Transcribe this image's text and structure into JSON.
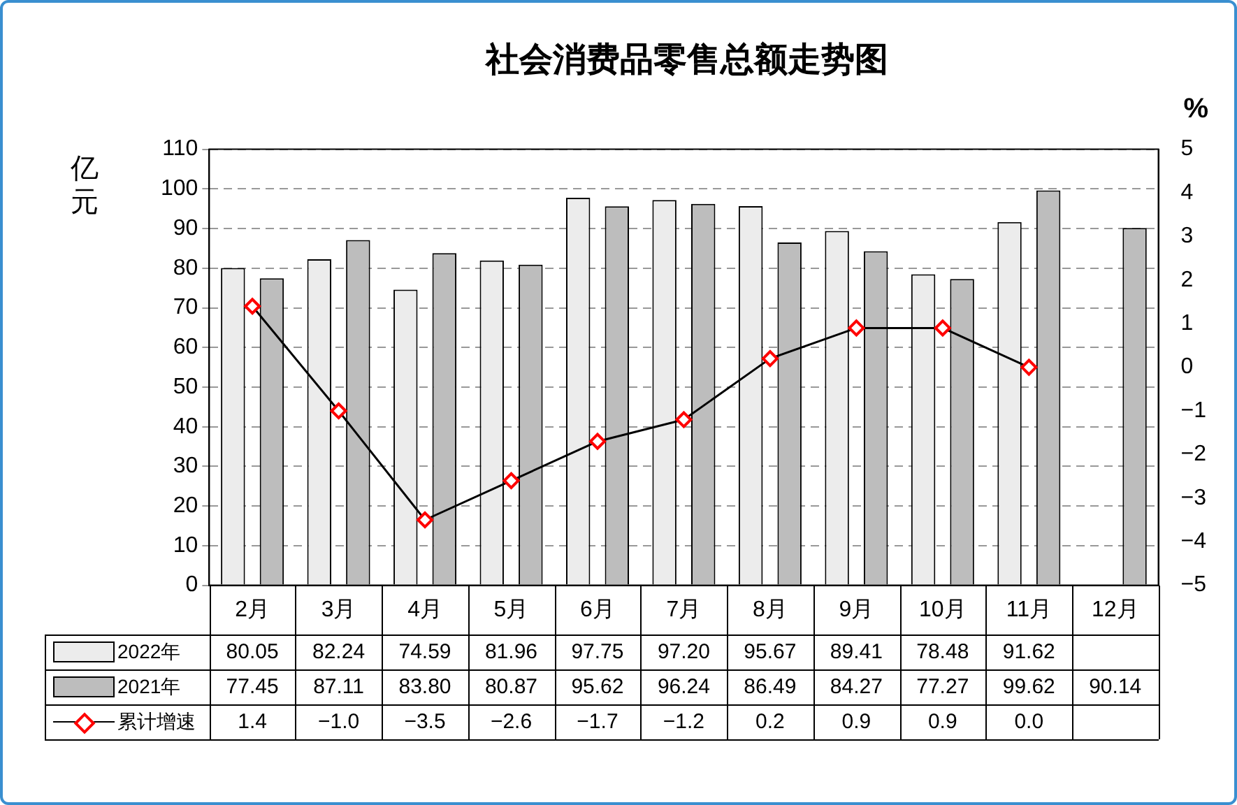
{
  "chart_data": {
    "type": "bar",
    "title": "社会消费品零售总额走势图",
    "ylabel": "亿元",
    "y2label": "%",
    "categories": [
      "2月",
      "3月",
      "4月",
      "5月",
      "6月",
      "7月",
      "8月",
      "9月",
      "10月",
      "11月",
      "12月"
    ],
    "series": [
      {
        "name": "2022年",
        "color": "#ececec",
        "values": [
          80.05,
          82.24,
          74.59,
          81.96,
          97.75,
          97.2,
          95.67,
          89.41,
          78.48,
          91.62,
          null
        ],
        "value_labels": [
          "80.05",
          "82.24",
          "74.59",
          "81.96",
          "97.75",
          "97.20",
          "95.67",
          "89.41",
          "78.48",
          "91.62",
          null
        ]
      },
      {
        "name": "2021年",
        "color": "#bdbdbd",
        "values": [
          77.45,
          87.11,
          83.8,
          80.87,
          95.62,
          96.24,
          86.49,
          84.27,
          77.27,
          99.62,
          90.14
        ],
        "value_labels": [
          "77.45",
          "87.11",
          "83.80",
          "80.87",
          "95.62",
          "96.24",
          "86.49",
          "84.27",
          "77.27",
          "99.62",
          "90.14"
        ]
      },
      {
        "name": "累计增速",
        "type": "line",
        "axis": "y2",
        "color": "#ff0000",
        "values": [
          1.4,
          -1.0,
          -3.5,
          -2.6,
          -1.7,
          -1.2,
          0.2,
          0.9,
          0.9,
          0.0,
          null
        ],
        "value_labels": [
          "1.4",
          "−1.0",
          "−3.5",
          "−2.6",
          "−1.7",
          "−1.2",
          "0.2",
          "0.9",
          "0.9",
          "0.0",
          null
        ]
      }
    ],
    "ylim": [
      0,
      110
    ],
    "yticks": [
      0,
      10,
      20,
      30,
      40,
      50,
      60,
      70,
      80,
      90,
      100,
      110
    ],
    "y2lim": [
      -5,
      5
    ],
    "y2ticks": [
      {
        "value": -5,
        "label": "−5"
      },
      {
        "value": -4,
        "label": "−4"
      },
      {
        "value": -3,
        "label": "−3"
      },
      {
        "value": -2,
        "label": "−2"
      },
      {
        "value": -1,
        "label": "−1"
      },
      0,
      1,
      2,
      3,
      4,
      5
    ],
    "grid": "y",
    "legend": "bottom",
    "marker": "diamond",
    "line_style": "solid"
  }
}
